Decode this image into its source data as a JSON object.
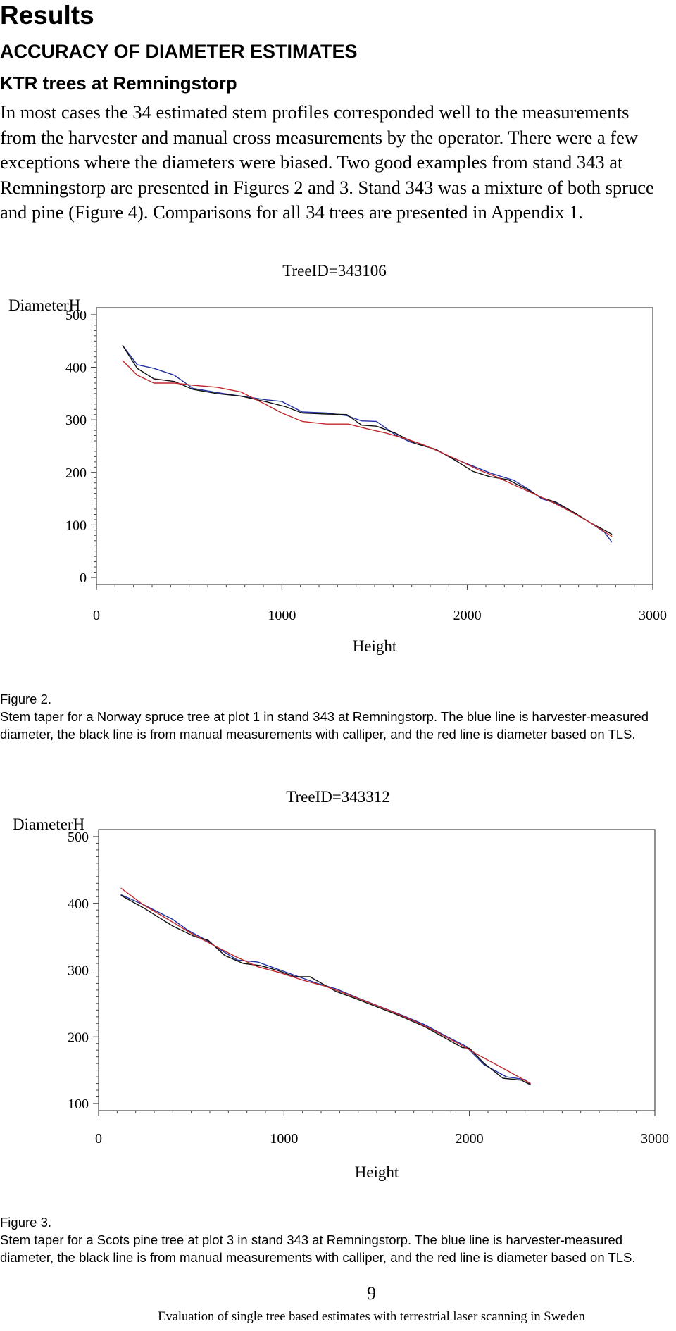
{
  "section_title": "Results",
  "subsection_title": "ACCURACY OF DIAMETER ESTIMATES",
  "subsubsection_title": "KTR trees at Remningstorp",
  "intro_paragraph": "In most cases the 34 estimated stem profiles corresponded well to the measurements from the harvester and manual cross measurements by the operator. There were a few exceptions where the diameters were biased. Two good examples from stand 343 at Remningstorp are presented in Figures 2 and 3. Stand 343 was a mixture of both spruce and pine (Figure 4). Comparisons for all 34 trees are presented in Appendix 1.",
  "figures": [
    {
      "label": "Figure 2.",
      "caption": "Stem taper for a Norway spruce tree at plot 1 in stand 343 at Remningstorp. The blue line is harvester-measured diameter, the black line is from manual measurements with calliper, and the red line is diameter based on TLS."
    },
    {
      "label": "Figure 3.",
      "caption": "Stem taper for a Scots pine tree at plot 3 in stand 343 at Remningstorp. The blue line is harvester-measured diameter, the black line is from manual measurements with calliper, and the red line is diameter based on TLS."
    }
  ],
  "page_number": "9",
  "footer_text": "Evaluation of single tree based estimates with terrestrial laser scanning in Sweden",
  "colors": {
    "harvester": "#1f2fa0",
    "calliper": "#111111",
    "tls": "#c0282d"
  },
  "chart_data": [
    {
      "type": "line",
      "title": "TreeID=343106",
      "xlabel": "Height",
      "ylabel": "DiameterH",
      "xlim": [
        0,
        3000
      ],
      "ylim": [
        0,
        500
      ],
      "xticks": [
        "0",
        "1000",
        "2000",
        "3000"
      ],
      "yticks": [
        "0",
        "100",
        "200",
        "300",
        "400",
        "500"
      ],
      "series": [
        {
          "key": "harvester",
          "color": "#1f2fa0",
          "x": [
            140,
            220,
            310,
            420,
            520,
            650,
            780,
            920,
            1000,
            1110,
            1240,
            1350,
            1430,
            1510,
            1610,
            1690,
            1810,
            1930,
            2030,
            2130,
            2250,
            2330,
            2400,
            2480,
            2570,
            2660,
            2740,
            2780
          ],
          "y": [
            442,
            405,
            398,
            385,
            360,
            352,
            345,
            338,
            335,
            315,
            313,
            308,
            298,
            297,
            272,
            258,
            246,
            226,
            212,
            198,
            185,
            168,
            150,
            141,
            123,
            105,
            86,
            67
          ]
        },
        {
          "key": "calliper",
          "color": "#111111",
          "x": [
            140,
            220,
            310,
            420,
            520,
            650,
            780,
            920,
            1020,
            1110,
            1240,
            1350,
            1430,
            1510,
            1610,
            1720,
            1830,
            1930,
            2030,
            2120,
            2220,
            2320,
            2400,
            2480,
            2570,
            2660,
            2740,
            2780
          ],
          "y": [
            442,
            398,
            378,
            373,
            358,
            350,
            345,
            334,
            325,
            313,
            311,
            310,
            290,
            288,
            275,
            255,
            244,
            224,
            202,
            192,
            186,
            168,
            152,
            143,
            125,
            105,
            90,
            82
          ]
        },
        {
          "key": "tls",
          "color": "#c0282d",
          "x": [
            140,
            220,
            310,
            420,
            520,
            650,
            780,
            920,
            1000,
            1110,
            1240,
            1360,
            1460,
            1560,
            1660,
            1760,
            1860,
            1960,
            2060,
            2160,
            2260,
            2360,
            2460,
            2560,
            2660,
            2780
          ],
          "y": [
            413,
            385,
            370,
            370,
            366,
            362,
            353,
            328,
            313,
            297,
            292,
            292,
            283,
            275,
            265,
            253,
            238,
            222,
            205,
            191,
            175,
            159,
            143,
            125,
            105,
            78
          ]
        }
      ]
    },
    {
      "type": "line",
      "title": "TreeID=343312",
      "xlabel": "Height",
      "ylabel": "DiameterH",
      "xlim": [
        0,
        3000
      ],
      "ylim": [
        100,
        500
      ],
      "xticks": [
        "0",
        "1000",
        "2000",
        "3000"
      ],
      "yticks": [
        "100",
        "200",
        "300",
        "400",
        "500"
      ],
      "series": [
        {
          "key": "harvester",
          "color": "#1f2fa0",
          "x": [
            120,
            250,
            400,
            480,
            580,
            660,
            750,
            860,
            960,
            1060,
            1180,
            1280,
            1400,
            1520,
            1640,
            1760,
            1860,
            1980,
            2080,
            2200,
            2300,
            2330
          ],
          "y": [
            413,
            397,
            376,
            360,
            345,
            330,
            315,
            312,
            302,
            292,
            280,
            272,
            258,
            245,
            232,
            218,
            203,
            186,
            158,
            140,
            136,
            128
          ]
        },
        {
          "key": "calliper",
          "color": "#111111",
          "x": [
            120,
            250,
            400,
            520,
            590,
            680,
            780,
            870,
            960,
            1060,
            1140,
            1280,
            1380,
            1500,
            1620,
            1760,
            1870,
            1960,
            2000,
            2080,
            2180,
            2280,
            2330
          ],
          "y": [
            412,
            392,
            366,
            350,
            345,
            322,
            310,
            307,
            300,
            290,
            290,
            268,
            258,
            245,
            232,
            215,
            198,
            184,
            183,
            160,
            138,
            135,
            128
          ]
        },
        {
          "key": "tls",
          "color": "#c0282d",
          "x": [
            120,
            240,
            380,
            500,
            620,
            740,
            860,
            980,
            1100,
            1220,
            1340,
            1460,
            1580,
            1700,
            1820,
            1940,
            2060,
            2180,
            2330
          ],
          "y": [
            423,
            398,
            375,
            355,
            337,
            320,
            305,
            296,
            285,
            276,
            264,
            251,
            238,
            224,
            208,
            190,
            171,
            153,
            130
          ]
        }
      ]
    }
  ]
}
